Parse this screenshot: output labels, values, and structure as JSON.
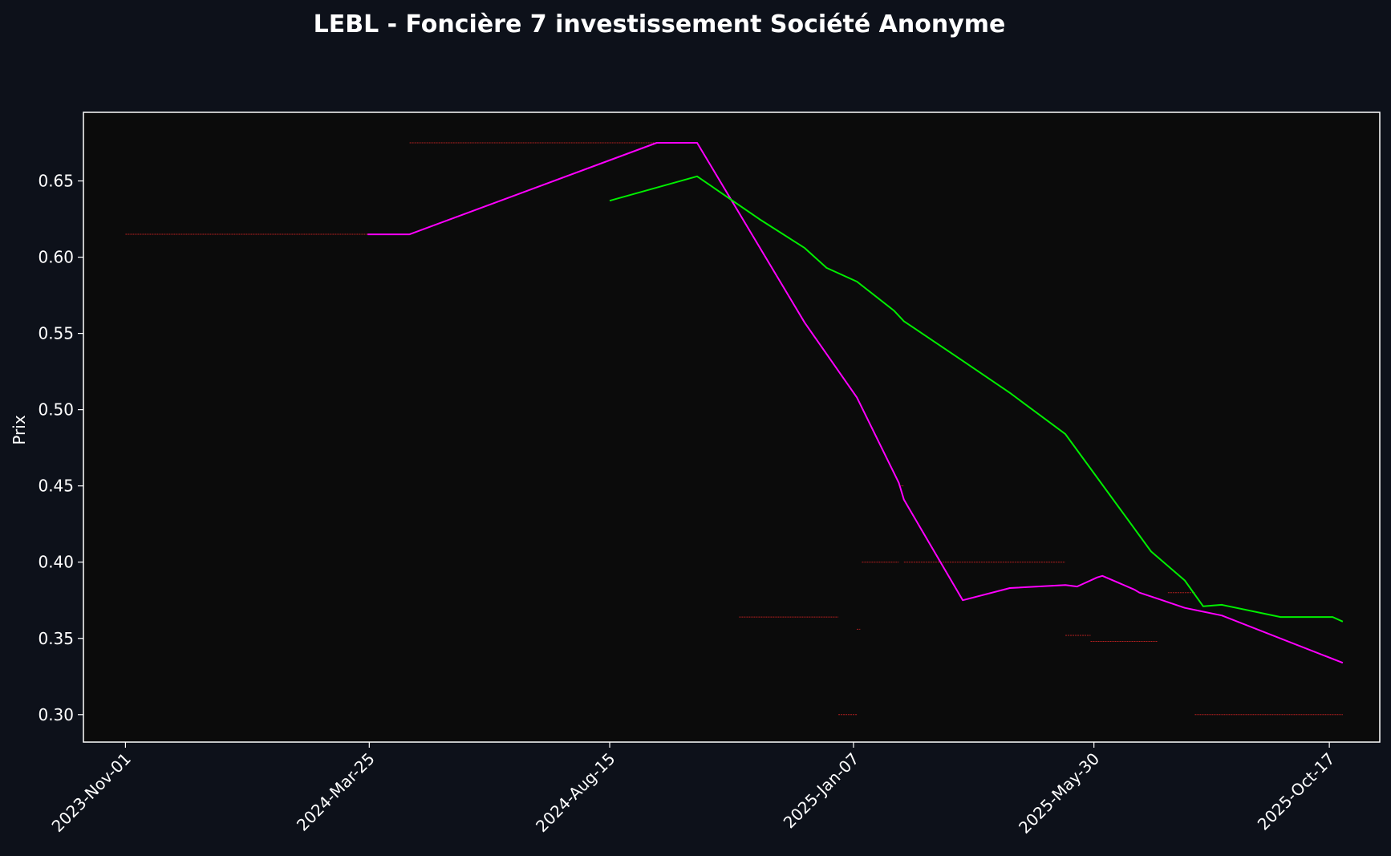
{
  "chart_data": {
    "type": "line",
    "title": "LEBL - Foncière 7 investissement Société Anonyme",
    "xlabel": "",
    "ylabel": "Prix",
    "ylim": [
      0.282,
      0.695
    ],
    "xlim": [
      "2023-10-07",
      "2025-11-16"
    ],
    "x_ticks": [
      "2023-Nov-01",
      "2024-Mar-25",
      "2024-Aug-15",
      "2025-Jan-07",
      "2025-May-30",
      "2025-Oct-17"
    ],
    "y_ticks": [
      0.3,
      0.35,
      0.4,
      0.45,
      0.5,
      0.55,
      0.6,
      0.65
    ],
    "grid": false,
    "colors": {
      "figure_bg": "#0d111a",
      "plot_bg": "#0b0b0b",
      "frame": "#ffffff",
      "price_steps": "#ff2a2a",
      "magenta_line": "#ff00ff",
      "green_line": "#00ee00"
    },
    "series": [
      {
        "style": "steps",
        "color": "#ff2a2a",
        "segments": [
          {
            "x_start": "2023-11-01",
            "x_end": "2024-03-24",
            "y": 0.615
          },
          {
            "x_start": "2024-04-18",
            "x_end": "2024-10-06",
            "y": 0.675
          },
          {
            "x_start": "2024-10-31",
            "x_end": "2024-12-29",
            "y": 0.364
          },
          {
            "x_start": "2024-12-29",
            "x_end": "2025-01-09",
            "y": 0.3
          },
          {
            "x_start": "2025-01-09",
            "x_end": "2025-01-11",
            "y": 0.356
          },
          {
            "x_start": "2025-01-12",
            "x_end": "2025-02-03",
            "y": 0.4
          },
          {
            "x_start": "2025-02-03",
            "x_end": "2025-02-06",
            "y": 0.45
          },
          {
            "x_start": "2025-02-06",
            "x_end": "2025-05-13",
            "y": 0.4
          },
          {
            "x_start": "2025-05-13",
            "x_end": "2025-05-28",
            "y": 0.352
          },
          {
            "x_start": "2025-05-28",
            "x_end": "2025-07-07",
            "y": 0.348
          },
          {
            "x_start": "2025-07-13",
            "x_end": "2025-07-29",
            "y": 0.38
          },
          {
            "x_start": "2025-07-29",
            "x_end": "2025-10-25",
            "y": 0.3
          }
        ]
      },
      {
        "style": "line",
        "color": "#ff00ff",
        "x": [
          "2024-03-24",
          "2024-04-18",
          "2024-09-12",
          "2024-10-06",
          "2024-12-09",
          "2025-01-09",
          "2025-02-03",
          "2025-02-06",
          "2025-03-13",
          "2025-04-10",
          "2025-05-13",
          "2025-05-20",
          "2025-06-01",
          "2025-06-04",
          "2025-06-23",
          "2025-06-26",
          "2025-07-07",
          "2025-07-23",
          "2025-08-14",
          "2025-10-25"
        ],
        "y": [
          0.615,
          0.615,
          0.675,
          0.675,
          0.557,
          0.508,
          0.452,
          0.441,
          0.375,
          0.383,
          0.385,
          0.384,
          0.39,
          0.391,
          0.382,
          0.38,
          0.376,
          0.37,
          0.365,
          0.334
        ]
      },
      {
        "style": "line",
        "color": "#00ee00",
        "x": [
          "2024-08-15",
          "2024-10-06",
          "2024-11-12",
          "2024-12-09",
          "2024-12-22",
          "2025-01-09",
          "2025-01-31",
          "2025-02-06",
          "2025-03-13",
          "2025-04-10",
          "2025-05-13",
          "2025-07-03",
          "2025-07-23",
          "2025-08-03",
          "2025-08-14",
          "2025-09-18",
          "2025-10-19",
          "2025-10-25"
        ],
        "y": [
          0.637,
          0.653,
          0.625,
          0.606,
          0.593,
          0.584,
          0.565,
          0.558,
          0.532,
          0.511,
          0.484,
          0.407,
          0.388,
          0.371,
          0.372,
          0.364,
          0.364,
          0.361
        ]
      }
    ]
  }
}
